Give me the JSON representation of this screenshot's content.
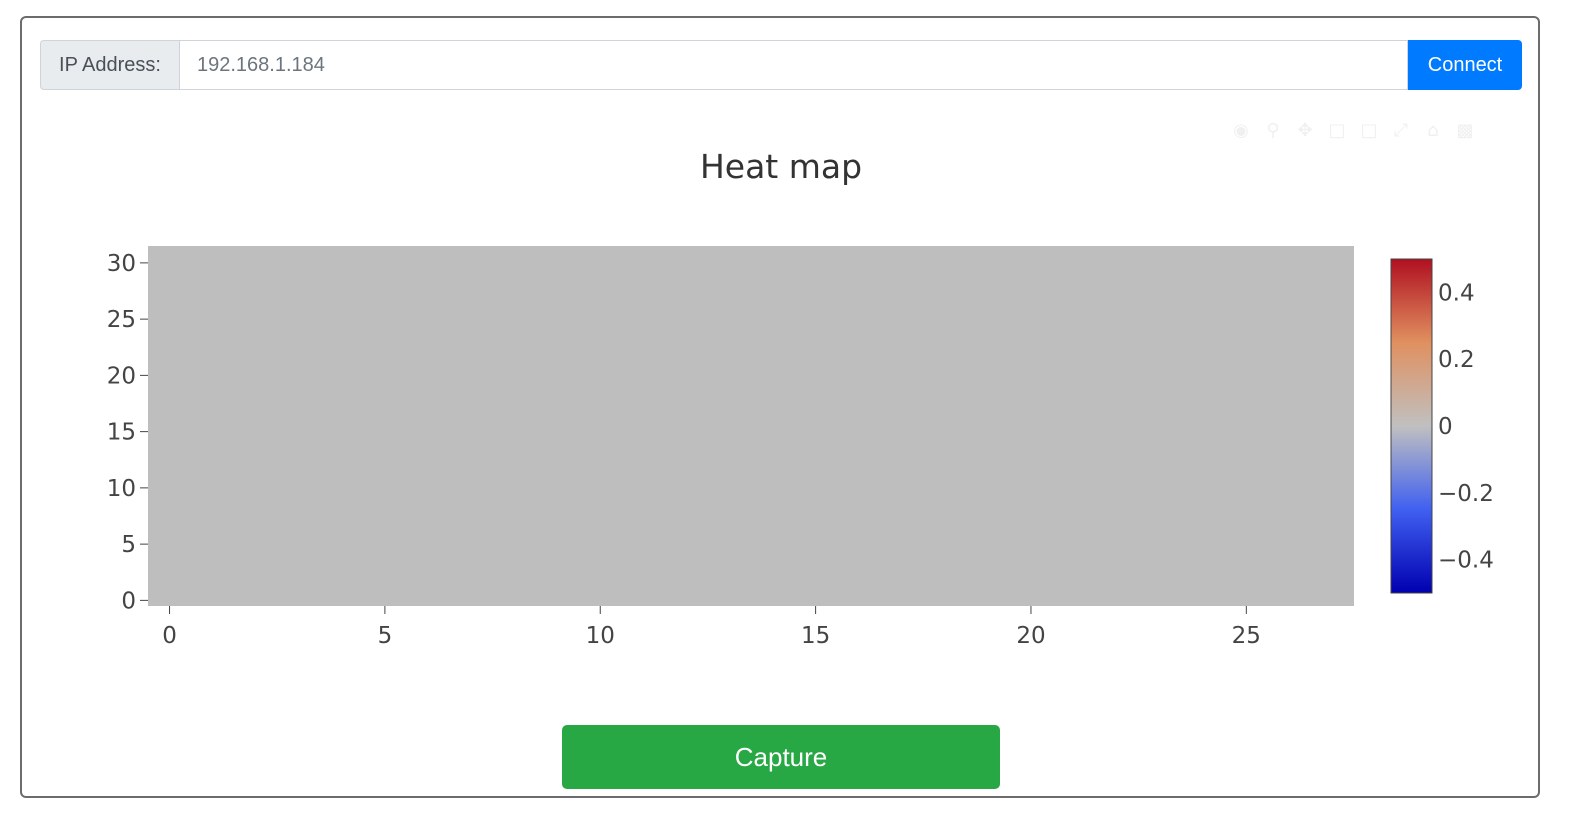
{
  "connection": {
    "ip_label": "IP Address:",
    "ip_value": "192.168.1.184",
    "connect_label": "Connect"
  },
  "modebar": {
    "icons": [
      "camera-icon",
      "zoom-icon",
      "pan-icon",
      "zoom-in-icon",
      "zoom-out-icon",
      "autoscale-icon",
      "reset-axes-icon",
      "plotly-logo-icon"
    ]
  },
  "chart_data": {
    "type": "heatmap",
    "title": "Heat map",
    "x_ticks": [
      "0",
      "5",
      "10",
      "15",
      "20",
      "25"
    ],
    "y_ticks": [
      "0",
      "5",
      "10",
      "15",
      "20",
      "25",
      "30"
    ],
    "xlim": [
      -0.5,
      27.5
    ],
    "ylim": [
      -0.5,
      31.5
    ],
    "z_uniform_value": 0,
    "colorscale": [
      "#0000b0",
      "#4060f0",
      "#c0c0c0",
      "#e09060",
      "#b01020"
    ],
    "colorbar": {
      "range": [
        -0.5,
        0.5
      ],
      "ticks": [
        {
          "value": 0.4,
          "label": "0.4"
        },
        {
          "value": 0.2,
          "label": "0.2"
        },
        {
          "value": 0,
          "label": "0"
        },
        {
          "value": -0.2,
          "label": "−0.2"
        },
        {
          "value": -0.4,
          "label": "−0.4"
        }
      ]
    },
    "cell_color": "#bebebe"
  },
  "actions": {
    "capture_label": "Capture"
  }
}
